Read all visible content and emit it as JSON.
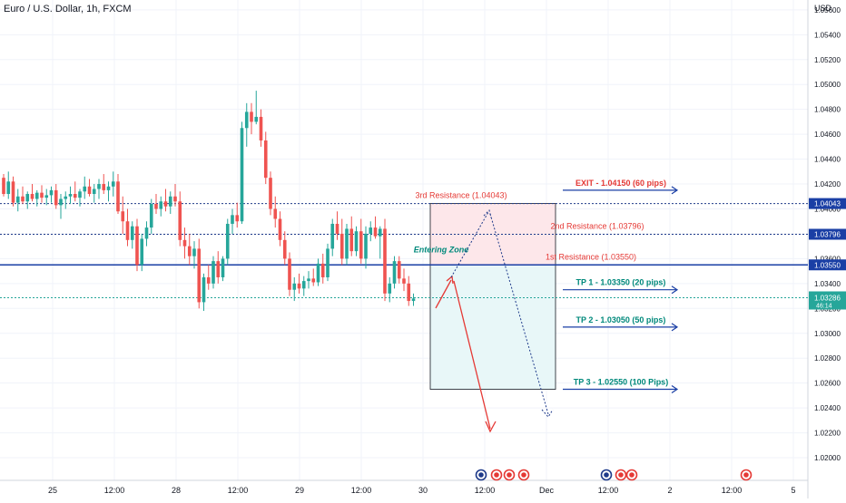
{
  "header": {
    "title": "Euro / U.S. Dollar, 1h, FXCM"
  },
  "chart_data": {
    "type": "candlestick",
    "currency_label": "USD",
    "ylim": [
      1.0192,
      1.0565
    ],
    "y_ticks": [
      "1.05600",
      "1.05400",
      "1.05200",
      "1.05000",
      "1.04800",
      "1.04600",
      "1.04400",
      "1.04200",
      "1.04000",
      "1.03800",
      "1.03600",
      "1.03400",
      "1.03200",
      "1.03000",
      "1.02800",
      "1.02600",
      "1.02400",
      "1.02200",
      "1.02000"
    ],
    "x_ticks": [
      {
        "label": "25",
        "t": 58
      },
      {
        "label": "12:00",
        "t": 126
      },
      {
        "label": "28",
        "t": 194
      },
      {
        "label": "12:00",
        "t": 262
      },
      {
        "label": "29",
        "t": 330
      },
      {
        "label": "12:00",
        "t": 398
      },
      {
        "label": "30",
        "t": 466
      },
      {
        "label": "12:00",
        "t": 534
      },
      {
        "label": "Dec",
        "t": 602
      },
      {
        "label": "12:00",
        "t": 670
      },
      {
        "label": "2",
        "t": 738
      },
      {
        "label": "12:00",
        "t": 806
      },
      {
        "label": "5",
        "t": 874
      }
    ],
    "candles": [
      [
        1.0425,
        1.0428,
        1.041,
        1.0412
      ],
      [
        1.0412,
        1.043,
        1.0408,
        1.0422
      ],
      [
        1.0422,
        1.0426,
        1.0402,
        1.0405
      ],
      [
        1.0405,
        1.0416,
        1.0398,
        1.041
      ],
      [
        1.041,
        1.0418,
        1.0404,
        1.0406
      ],
      [
        1.0406,
        1.0414,
        1.04,
        1.0412
      ],
      [
        1.0412,
        1.042,
        1.0406,
        1.0408
      ],
      [
        1.0408,
        1.0415,
        1.0402,
        1.0413
      ],
      [
        1.0413,
        1.0419,
        1.0405,
        1.0409
      ],
      [
        1.0409,
        1.0416,
        1.0403,
        1.0411
      ],
      [
        1.0411,
        1.0418,
        1.0405,
        1.0415
      ],
      [
        1.0415,
        1.042,
        1.04,
        1.0403
      ],
      [
        1.0403,
        1.0412,
        1.0392,
        1.0408
      ],
      [
        1.0408,
        1.0414,
        1.04,
        1.041
      ],
      [
        1.041,
        1.0418,
        1.0404,
        1.0412
      ],
      [
        1.0412,
        1.0422,
        1.0406,
        1.0409
      ],
      [
        1.0409,
        1.0416,
        1.0402,
        1.0414
      ],
      [
        1.0414,
        1.0426,
        1.0408,
        1.0418
      ],
      [
        1.0418,
        1.0424,
        1.041,
        1.0412
      ],
      [
        1.0412,
        1.042,
        1.0405,
        1.0416
      ],
      [
        1.0416,
        1.0424,
        1.0408,
        1.042
      ],
      [
        1.042,
        1.0428,
        1.0412,
        1.0415
      ],
      [
        1.0415,
        1.0422,
        1.0406,
        1.0418
      ],
      [
        1.0418,
        1.043,
        1.041,
        1.0422
      ],
      [
        1.0422,
        1.0428,
        1.0396,
        1.0398
      ],
      [
        1.0398,
        1.041,
        1.038,
        1.039
      ],
      [
        1.039,
        1.04,
        1.037,
        1.0375
      ],
      [
        1.0375,
        1.039,
        1.0368,
        1.0386
      ],
      [
        1.0386,
        1.0392,
        1.035,
        1.0355
      ],
      [
        1.0355,
        1.038,
        1.035,
        1.0376
      ],
      [
        1.0376,
        1.039,
        1.037,
        1.0385
      ],
      [
        1.0385,
        1.0408,
        1.038,
        1.0404
      ],
      [
        1.0404,
        1.0412,
        1.0396,
        1.04
      ],
      [
        1.04,
        1.041,
        1.0394,
        1.0406
      ],
      [
        1.0406,
        1.0416,
        1.0398,
        1.0402
      ],
      [
        1.0402,
        1.0414,
        1.0396,
        1.041
      ],
      [
        1.041,
        1.042,
        1.0402,
        1.0406
      ],
      [
        1.0406,
        1.0414,
        1.037,
        1.0375
      ],
      [
        1.0375,
        1.0385,
        1.036,
        1.037
      ],
      [
        1.037,
        1.038,
        1.0355,
        1.0362
      ],
      [
        1.0362,
        1.0374,
        1.0352,
        1.0368
      ],
      [
        1.0368,
        1.0376,
        1.032,
        1.0325
      ],
      [
        1.0325,
        1.0348,
        1.0318,
        1.0345
      ],
      [
        1.0345,
        1.0355,
        1.0335,
        1.034
      ],
      [
        1.034,
        1.0362,
        1.0336,
        1.0358
      ],
      [
        1.0358,
        1.0366,
        1.034,
        1.0345
      ],
      [
        1.0345,
        1.0362,
        1.0342,
        1.036
      ],
      [
        1.036,
        1.0392,
        1.0355,
        1.0388
      ],
      [
        1.0388,
        1.04,
        1.038,
        1.0395
      ],
      [
        1.0395,
        1.0405,
        1.0385,
        1.039
      ],
      [
        1.039,
        1.047,
        1.0388,
        1.0465
      ],
      [
        1.0465,
        1.0485,
        1.045,
        1.0478
      ],
      [
        1.0478,
        1.0485,
        1.046,
        1.047
      ],
      [
        1.047,
        1.0495,
        1.0468,
        1.0474
      ],
      [
        1.0474,
        1.048,
        1.045,
        1.0455
      ],
      [
        1.0455,
        1.0462,
        1.042,
        1.0425
      ],
      [
        1.0425,
        1.043,
        1.0395,
        1.04
      ],
      [
        1.04,
        1.041,
        1.0385,
        1.0392
      ],
      [
        1.0392,
        1.0398,
        1.037,
        1.0375
      ],
      [
        1.0375,
        1.0382,
        1.0355,
        1.036
      ],
      [
        1.036,
        1.0365,
        1.033,
        1.0335
      ],
      [
        1.0335,
        1.0345,
        1.0326,
        1.034
      ],
      [
        1.034,
        1.0348,
        1.0332,
        1.0336
      ],
      [
        1.0336,
        1.0346,
        1.033,
        1.0342
      ],
      [
        1.0342,
        1.035,
        1.0336,
        1.0344
      ],
      [
        1.0344,
        1.0352,
        1.0338,
        1.0341
      ],
      [
        1.0341,
        1.036,
        1.0338,
        1.0356
      ],
      [
        1.0356,
        1.0364,
        1.034,
        1.0345
      ],
      [
        1.0345,
        1.0372,
        1.0342,
        1.0368
      ],
      [
        1.0368,
        1.0392,
        1.0362,
        1.0388
      ],
      [
        1.0388,
        1.0398,
        1.0375,
        1.038
      ],
      [
        1.038,
        1.0392,
        1.0355,
        1.036
      ],
      [
        1.036,
        1.0388,
        1.0355,
        1.0384
      ],
      [
        1.0384,
        1.0394,
        1.0362,
        1.0366
      ],
      [
        1.0366,
        1.0386,
        1.0362,
        1.0382
      ],
      [
        1.0382,
        1.0392,
        1.0356,
        1.036
      ],
      [
        1.036,
        1.0386,
        1.0352,
        1.038
      ],
      [
        1.038,
        1.039,
        1.0374,
        1.0385
      ],
      [
        1.0385,
        1.0394,
        1.0376,
        1.0378
      ],
      [
        1.0378,
        1.0386,
        1.036,
        1.0384
      ],
      [
        1.0384,
        1.0392,
        1.0326,
        1.0332
      ],
      [
        1.0332,
        1.0345,
        1.0325,
        1.034
      ],
      [
        1.034,
        1.0362,
        1.0336,
        1.0358
      ],
      [
        1.0358,
        1.0362,
        1.034,
        1.0344
      ],
      [
        1.0344,
        1.0352,
        1.0334,
        1.034
      ],
      [
        1.034,
        1.0346,
        1.0322,
        1.0326
      ],
      [
        1.0326,
        1.0332,
        1.0322,
        1.0328
      ]
    ],
    "levels": [
      {
        "name": "3rd Resistance",
        "price": 1.04043,
        "label": "3rd Resistance (1.04043)",
        "badge": "1.04043",
        "color": "#1e3a8a",
        "style": "dotted"
      },
      {
        "name": "2nd Resistance",
        "price": 1.03796,
        "label": "2nd Resistance (1.03796)",
        "badge": "1.03796",
        "color": "#1e3a8a",
        "style": "dotted"
      },
      {
        "name": "1st Resistance",
        "price": 1.0355,
        "label": "1st Resistance (1.03550)",
        "badge": "1.03550",
        "color": "#1a3fa5",
        "style": "solid"
      },
      {
        "name": "Last Price",
        "price": 1.03286,
        "label": "",
        "badge": "1.03286",
        "countdown": "46:14",
        "color": "#26a69a",
        "style": "dotted"
      }
    ],
    "targets": [
      {
        "label": "EXIT - 1.04150 (60 pips)",
        "price": 1.0415,
        "color": "#e53935"
      },
      {
        "label": "TP 1 - 1.03350 (20 pips)",
        "price": 1.0335,
        "color": "#00897b"
      },
      {
        "label": "TP 2 - 1.03050 (50 pips)",
        "price": 1.0305,
        "color": "#00897b"
      },
      {
        "label": "TP 3 - 1.02550 (100 Pips)",
        "price": 1.0255,
        "color": "#00897b"
      }
    ],
    "position": {
      "entry": 1.0355,
      "stop": 1.04043,
      "target": 1.0255,
      "t_start": 474,
      "t_end": 612
    },
    "entering_zone_label": "Entering Zone",
    "colors": {
      "up": "#26a69a",
      "down": "#ef5350",
      "stop_zone": "#fde7ea",
      "target_zone": "#e8f7f8",
      "grid": "#f0f3fa"
    }
  }
}
